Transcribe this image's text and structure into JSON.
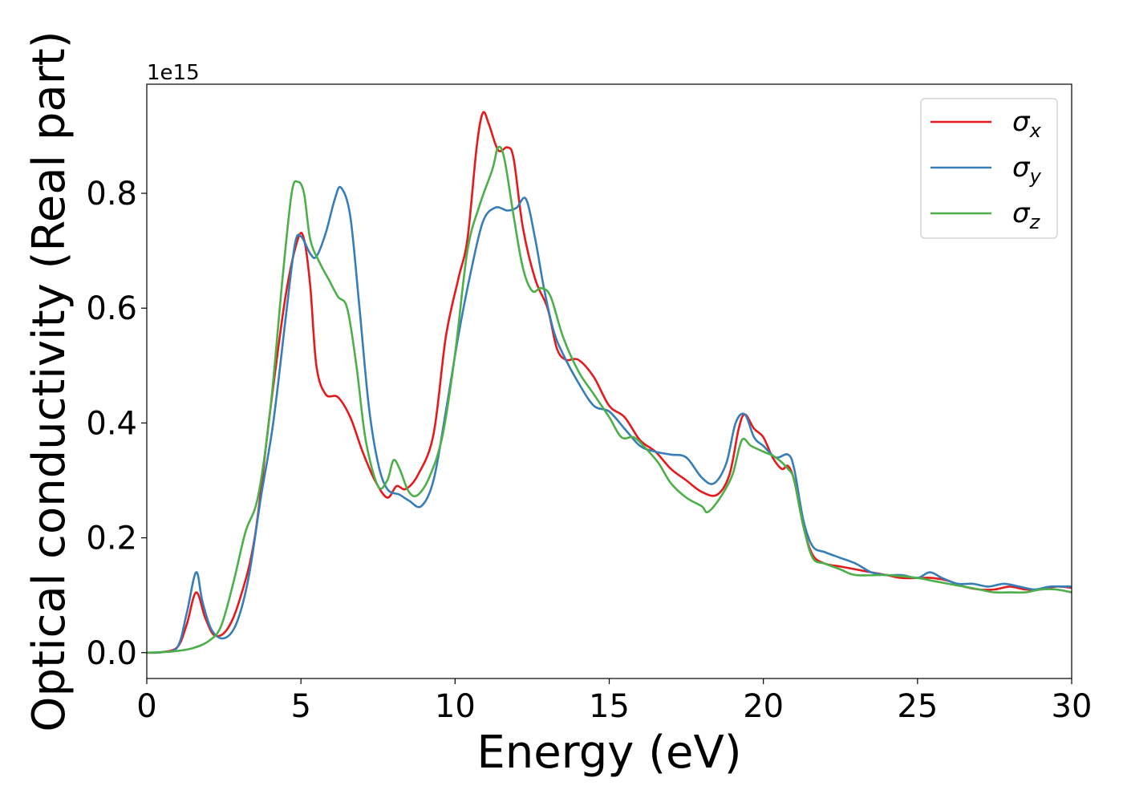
{
  "chart_data": {
    "type": "line",
    "title": "",
    "xlabel": "Energy (eV)",
    "ylabel": "Optical conductivity (Real part)",
    "y_offset_label": "1e15",
    "xlim": [
      0,
      30
    ],
    "ylim": [
      -0.045,
      0.99
    ],
    "xticks": [
      0,
      5,
      10,
      15,
      20,
      25,
      30
    ],
    "yticks": [
      0.0,
      0.2,
      0.4,
      0.6,
      0.8
    ],
    "xtick_labels": [
      "0",
      "5",
      "10",
      "15",
      "20",
      "25",
      "30"
    ],
    "ytick_labels": [
      "0.0",
      "0.2",
      "0.4",
      "0.6",
      "0.8"
    ],
    "grid": false,
    "legend_position": "top-right",
    "series": [
      {
        "name": "σx",
        "symbol": "σ",
        "subscript": "x",
        "color": "#e41a1c",
        "points": [
          [
            0,
            0
          ],
          [
            0.5,
            0.001
          ],
          [
            1.0,
            0.01
          ],
          [
            1.3,
            0.05
          ],
          [
            1.6,
            0.105
          ],
          [
            1.9,
            0.06
          ],
          [
            2.2,
            0.03
          ],
          [
            2.6,
            0.04
          ],
          [
            3.0,
            0.09
          ],
          [
            3.5,
            0.2
          ],
          [
            4.0,
            0.42
          ],
          [
            4.5,
            0.62
          ],
          [
            4.9,
            0.72
          ],
          [
            5.1,
            0.72
          ],
          [
            5.3,
            0.64
          ],
          [
            5.5,
            0.5
          ],
          [
            5.8,
            0.45
          ],
          [
            6.2,
            0.445
          ],
          [
            6.6,
            0.41
          ],
          [
            7.0,
            0.35
          ],
          [
            7.4,
            0.3
          ],
          [
            7.8,
            0.27
          ],
          [
            8.1,
            0.29
          ],
          [
            8.4,
            0.285
          ],
          [
            8.8,
            0.31
          ],
          [
            9.3,
            0.38
          ],
          [
            9.7,
            0.55
          ],
          [
            10.1,
            0.65
          ],
          [
            10.4,
            0.72
          ],
          [
            10.7,
            0.88
          ],
          [
            10.9,
            0.94
          ],
          [
            11.1,
            0.92
          ],
          [
            11.4,
            0.875
          ],
          [
            11.7,
            0.88
          ],
          [
            11.9,
            0.86
          ],
          [
            12.2,
            0.74
          ],
          [
            12.6,
            0.65
          ],
          [
            13.0,
            0.6
          ],
          [
            13.3,
            0.53
          ],
          [
            13.6,
            0.51
          ],
          [
            14.0,
            0.51
          ],
          [
            14.5,
            0.48
          ],
          [
            15.0,
            0.43
          ],
          [
            15.5,
            0.41
          ],
          [
            16.0,
            0.37
          ],
          [
            16.5,
            0.35
          ],
          [
            17.0,
            0.32
          ],
          [
            17.5,
            0.3
          ],
          [
            18.0,
            0.28
          ],
          [
            18.5,
            0.275
          ],
          [
            18.9,
            0.31
          ],
          [
            19.2,
            0.39
          ],
          [
            19.4,
            0.415
          ],
          [
            19.7,
            0.39
          ],
          [
            20.0,
            0.375
          ],
          [
            20.3,
            0.34
          ],
          [
            20.6,
            0.32
          ],
          [
            20.8,
            0.325
          ],
          [
            21.0,
            0.3
          ],
          [
            21.3,
            0.22
          ],
          [
            21.6,
            0.17
          ],
          [
            22.0,
            0.155
          ],
          [
            22.5,
            0.15
          ],
          [
            23.0,
            0.145
          ],
          [
            23.5,
            0.14
          ],
          [
            24.0,
            0.135
          ],
          [
            24.5,
            0.13
          ],
          [
            25.0,
            0.13
          ],
          [
            25.5,
            0.13
          ],
          [
            26.0,
            0.125
          ],
          [
            26.5,
            0.115
          ],
          [
            27.0,
            0.11
          ],
          [
            27.5,
            0.11
          ],
          [
            28.0,
            0.115
          ],
          [
            28.5,
            0.11
          ],
          [
            29.0,
            0.11
          ],
          [
            29.5,
            0.115
          ],
          [
            30.0,
            0.113
          ]
        ]
      },
      {
        "name": "σy",
        "symbol": "σ",
        "subscript": "y",
        "color": "#377eb8",
        "points": [
          [
            0,
            0
          ],
          [
            0.5,
            0.001
          ],
          [
            1.0,
            0.01
          ],
          [
            1.3,
            0.07
          ],
          [
            1.6,
            0.14
          ],
          [
            1.8,
            0.09
          ],
          [
            2.1,
            0.04
          ],
          [
            2.5,
            0.025
          ],
          [
            2.9,
            0.05
          ],
          [
            3.3,
            0.13
          ],
          [
            3.7,
            0.27
          ],
          [
            4.1,
            0.4
          ],
          [
            4.5,
            0.58
          ],
          [
            4.8,
            0.71
          ],
          [
            5.0,
            0.725
          ],
          [
            5.3,
            0.695
          ],
          [
            5.5,
            0.69
          ],
          [
            5.8,
            0.73
          ],
          [
            6.1,
            0.79
          ],
          [
            6.3,
            0.81
          ],
          [
            6.6,
            0.76
          ],
          [
            6.9,
            0.6
          ],
          [
            7.2,
            0.43
          ],
          [
            7.5,
            0.33
          ],
          [
            7.8,
            0.285
          ],
          [
            8.2,
            0.275
          ],
          [
            8.5,
            0.265
          ],
          [
            8.9,
            0.255
          ],
          [
            9.3,
            0.3
          ],
          [
            9.7,
            0.42
          ],
          [
            10.1,
            0.55
          ],
          [
            10.5,
            0.66
          ],
          [
            10.9,
            0.75
          ],
          [
            11.3,
            0.775
          ],
          [
            11.7,
            0.77
          ],
          [
            12.0,
            0.775
          ],
          [
            12.3,
            0.79
          ],
          [
            12.6,
            0.72
          ],
          [
            12.9,
            0.63
          ],
          [
            13.2,
            0.56
          ],
          [
            13.5,
            0.52
          ],
          [
            14.0,
            0.47
          ],
          [
            14.5,
            0.43
          ],
          [
            15.0,
            0.42
          ],
          [
            15.5,
            0.39
          ],
          [
            16.0,
            0.36
          ],
          [
            16.5,
            0.35
          ],
          [
            17.0,
            0.345
          ],
          [
            17.5,
            0.34
          ],
          [
            18.0,
            0.305
          ],
          [
            18.4,
            0.295
          ],
          [
            18.8,
            0.33
          ],
          [
            19.1,
            0.4
          ],
          [
            19.4,
            0.415
          ],
          [
            19.7,
            0.375
          ],
          [
            20.0,
            0.36
          ],
          [
            20.4,
            0.34
          ],
          [
            20.8,
            0.345
          ],
          [
            21.0,
            0.32
          ],
          [
            21.3,
            0.23
          ],
          [
            21.6,
            0.185
          ],
          [
            22.0,
            0.175
          ],
          [
            22.5,
            0.165
          ],
          [
            23.0,
            0.155
          ],
          [
            23.5,
            0.14
          ],
          [
            24.0,
            0.135
          ],
          [
            24.5,
            0.135
          ],
          [
            25.0,
            0.13
          ],
          [
            25.4,
            0.14
          ],
          [
            25.8,
            0.13
          ],
          [
            26.3,
            0.12
          ],
          [
            26.8,
            0.12
          ],
          [
            27.3,
            0.115
          ],
          [
            27.8,
            0.12
          ],
          [
            28.3,
            0.115
          ],
          [
            28.8,
            0.11
          ],
          [
            29.3,
            0.115
          ],
          [
            30.0,
            0.115
          ]
        ]
      },
      {
        "name": "σz",
        "symbol": "σ",
        "subscript": "z",
        "color": "#4daf4a",
        "points": [
          [
            0,
            0
          ],
          [
            0.5,
            0.001
          ],
          [
            1.0,
            0.003
          ],
          [
            1.5,
            0.008
          ],
          [
            2.0,
            0.02
          ],
          [
            2.4,
            0.045
          ],
          [
            2.8,
            0.12
          ],
          [
            3.2,
            0.21
          ],
          [
            3.6,
            0.27
          ],
          [
            4.0,
            0.42
          ],
          [
            4.4,
            0.65
          ],
          [
            4.7,
            0.8
          ],
          [
            4.9,
            0.82
          ],
          [
            5.1,
            0.8
          ],
          [
            5.3,
            0.72
          ],
          [
            5.6,
            0.68
          ],
          [
            5.9,
            0.65
          ],
          [
            6.2,
            0.62
          ],
          [
            6.5,
            0.6
          ],
          [
            6.8,
            0.5
          ],
          [
            7.1,
            0.37
          ],
          [
            7.5,
            0.29
          ],
          [
            7.8,
            0.3
          ],
          [
            8.0,
            0.335
          ],
          [
            8.2,
            0.32
          ],
          [
            8.5,
            0.28
          ],
          [
            8.8,
            0.275
          ],
          [
            9.2,
            0.31
          ],
          [
            9.6,
            0.38
          ],
          [
            10.0,
            0.52
          ],
          [
            10.4,
            0.7
          ],
          [
            10.8,
            0.78
          ],
          [
            11.2,
            0.84
          ],
          [
            11.4,
            0.88
          ],
          [
            11.6,
            0.86
          ],
          [
            11.9,
            0.76
          ],
          [
            12.2,
            0.67
          ],
          [
            12.5,
            0.63
          ],
          [
            12.8,
            0.635
          ],
          [
            13.1,
            0.62
          ],
          [
            13.5,
            0.55
          ],
          [
            14.0,
            0.49
          ],
          [
            14.5,
            0.45
          ],
          [
            15.0,
            0.41
          ],
          [
            15.4,
            0.375
          ],
          [
            15.8,
            0.375
          ],
          [
            16.2,
            0.355
          ],
          [
            16.6,
            0.33
          ],
          [
            17.0,
            0.295
          ],
          [
            17.5,
            0.27
          ],
          [
            18.0,
            0.255
          ],
          [
            18.2,
            0.245
          ],
          [
            18.6,
            0.27
          ],
          [
            19.0,
            0.31
          ],
          [
            19.3,
            0.37
          ],
          [
            19.6,
            0.36
          ],
          [
            20.0,
            0.35
          ],
          [
            20.4,
            0.34
          ],
          [
            20.8,
            0.32
          ],
          [
            21.0,
            0.3
          ],
          [
            21.3,
            0.22
          ],
          [
            21.6,
            0.165
          ],
          [
            22.0,
            0.155
          ],
          [
            22.5,
            0.145
          ],
          [
            23.0,
            0.135
          ],
          [
            24.0,
            0.135
          ],
          [
            25.0,
            0.13
          ],
          [
            25.5,
            0.125
          ],
          [
            26.0,
            0.12
          ],
          [
            26.5,
            0.115
          ],
          [
            27.0,
            0.11
          ],
          [
            27.5,
            0.105
          ],
          [
            28.0,
            0.105
          ],
          [
            28.5,
            0.105
          ],
          [
            29.0,
            0.11
          ],
          [
            29.5,
            0.11
          ],
          [
            30.0,
            0.105
          ]
        ]
      }
    ]
  }
}
